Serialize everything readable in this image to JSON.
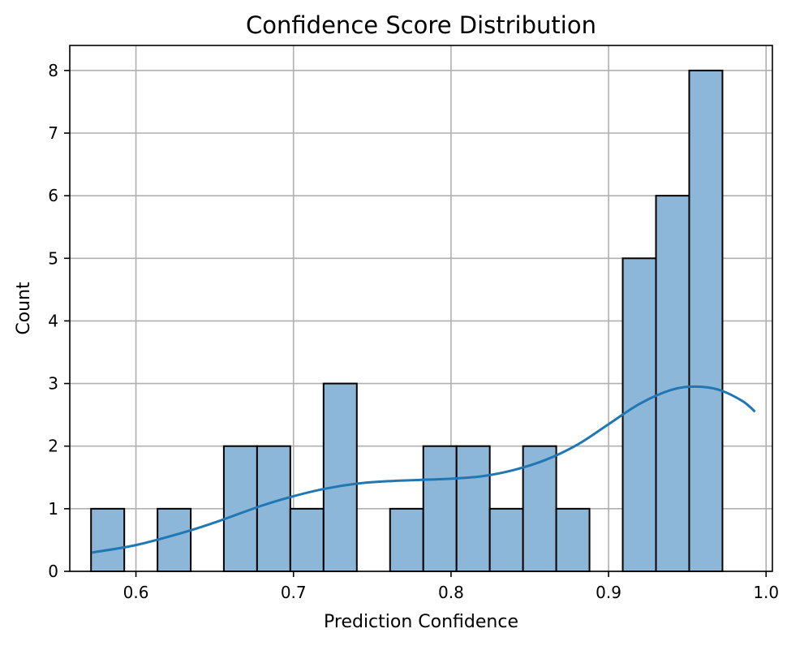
{
  "chart_data": {
    "type": "bar",
    "subtype": "histogram",
    "title": "Confidence Score Distribution",
    "xlabel": "Prediction Confidence",
    "ylabel": "Count",
    "xlim": [
      0.558,
      1.004
    ],
    "ylim": [
      0,
      8.4
    ],
    "xticks": [
      0.6,
      0.7,
      0.8,
      0.9,
      1.0
    ],
    "xtick_labels": [
      "0.6",
      "0.7",
      "0.8",
      "0.9",
      "1.0"
    ],
    "yticks": [
      0,
      1,
      2,
      3,
      4,
      5,
      6,
      7,
      8
    ],
    "ytick_labels": [
      "0",
      "1",
      "2",
      "3",
      "4",
      "5",
      "6",
      "7",
      "8"
    ],
    "grid": true,
    "bin_edges": [
      0.5715,
      0.5926,
      0.6137,
      0.6348,
      0.6558,
      0.6769,
      0.698,
      0.7191,
      0.7402,
      0.7613,
      0.7824,
      0.8035,
      0.8246,
      0.8457,
      0.8668,
      0.8879,
      0.909,
      0.9301,
      0.9512,
      0.9723,
      0.9934
    ],
    "counts": [
      1,
      0,
      1,
      0,
      2,
      2,
      1,
      3,
      0,
      1,
      2,
      2,
      1,
      2,
      1,
      0,
      5,
      6,
      8,
      0
    ],
    "bar_color": "#8cb7d9",
    "kde_color": "#1f77b4",
    "kde": {
      "x": [
        0.572,
        0.6,
        0.63,
        0.65,
        0.68,
        0.7,
        0.72,
        0.74,
        0.76,
        0.78,
        0.8,
        0.82,
        0.84,
        0.86,
        0.88,
        0.9,
        0.92,
        0.94,
        0.955,
        0.97,
        0.985,
        0.993
      ],
      "y": [
        0.3,
        0.42,
        0.62,
        0.78,
        1.05,
        1.2,
        1.32,
        1.4,
        1.44,
        1.46,
        1.48,
        1.52,
        1.62,
        1.78,
        2.02,
        2.35,
        2.68,
        2.9,
        2.95,
        2.9,
        2.72,
        2.55
      ]
    }
  }
}
